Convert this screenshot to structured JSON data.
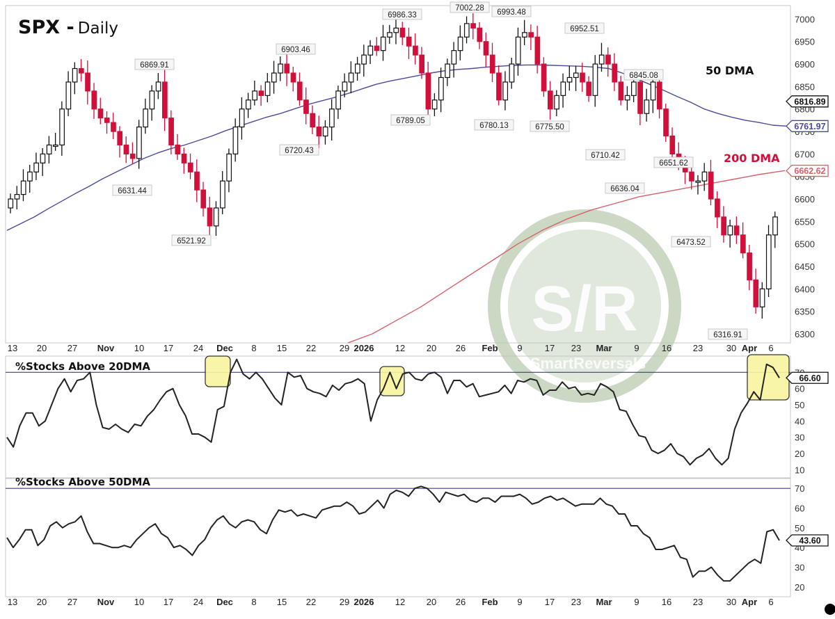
{
  "header": {
    "symbol": "SPX -",
    "timeframe": "Daily"
  },
  "labels": {
    "dma50": "50 DMA",
    "dma200": "200 DMA",
    "panel2_title": "%Stocks Above 20DMA",
    "panel3_title": "%Stocks Above 50DMA",
    "watermark_main": "S/R",
    "watermark_sub": "SmartReversals"
  },
  "colors": {
    "bear": "#d0103a",
    "bull_fill": "#ffffff",
    "bull_stroke": "#111111",
    "dma50": "#4a4a9c",
    "dma200": "#d9606b",
    "threshold": "#3b3b8f",
    "highlight": "#f8f4a0",
    "watermark": "#b9ccb0"
  },
  "chart_data": [
    {
      "type": "candlestick",
      "title": "SPX - Daily",
      "ylabel": "",
      "ylim": [
        6280,
        7030
      ],
      "y_ticks": [
        6300,
        6350,
        6400,
        6450,
        6500,
        6550,
        6600,
        6650,
        6700,
        6750,
        6800,
        6850,
        6900,
        6950,
        7000
      ],
      "x_tick_labels": [
        "13",
        "20",
        "27",
        "Nov",
        "10",
        "17",
        "24",
        "Dec",
        "8",
        "15",
        "22",
        "29",
        "2026",
        "12",
        "20",
        "26",
        "Feb",
        "9",
        "17",
        "23",
        "Mar",
        "9",
        "16",
        "23",
        "30",
        "Apr",
        "6"
      ],
      "last_values": {
        "price": "6816.89",
        "dma50": "6761.97",
        "dma200": "6662.62"
      },
      "annotations": [
        {
          "label": "6869.91",
          "type": "high"
        },
        {
          "label": "6903.46",
          "type": "high"
        },
        {
          "label": "6986.33",
          "type": "high"
        },
        {
          "label": "7002.28",
          "type": "high"
        },
        {
          "label": "6993.48",
          "type": "high"
        },
        {
          "label": "6952.51",
          "type": "high"
        },
        {
          "label": "6845.08",
          "type": "high"
        },
        {
          "label": "6651.62",
          "type": "high"
        },
        {
          "label": "6631.44",
          "type": "low"
        },
        {
          "label": "6521.92",
          "type": "low"
        },
        {
          "label": "6720.43",
          "type": "low"
        },
        {
          "label": "6789.05",
          "type": "low"
        },
        {
          "label": "6780.13",
          "type": "low"
        },
        {
          "label": "6775.50",
          "type": "low"
        },
        {
          "label": "6710.42",
          "type": "low"
        },
        {
          "label": "6636.04",
          "type": "low"
        },
        {
          "label": "6473.52",
          "type": "low"
        },
        {
          "label": "6316.91",
          "type": "low"
        }
      ],
      "series": [
        {
          "name": "50 DMA",
          "values": [
            6530,
            6545,
            6560,
            6578,
            6595,
            6612,
            6628,
            6645,
            6660,
            6675,
            6690,
            6702,
            6712,
            6720,
            6730,
            6740,
            6752,
            6762,
            6772,
            6782,
            6790,
            6800,
            6810,
            6818,
            6826,
            6835,
            6845,
            6855,
            6862,
            6868,
            6874,
            6880,
            6885,
            6888,
            6890,
            6893,
            6895,
            6897,
            6898,
            6898,
            6897,
            6896,
            6895,
            6893,
            6890,
            6880,
            6868,
            6855,
            6842,
            6828,
            6815,
            6800,
            6790,
            6782,
            6775,
            6770,
            6764,
            6762
          ]
        },
        {
          "name": "200 DMA",
          "values": [
            6280,
            6300,
            6330,
            6360,
            6395,
            6430,
            6465,
            6500,
            6530,
            6555,
            6575,
            6590,
            6605,
            6615,
            6625,
            6635,
            6645,
            6655,
            6663
          ]
        }
      ]
    },
    {
      "type": "line",
      "title": "%Stocks Above 20DMA",
      "ylim": [
        5,
        80
      ],
      "y_ticks": [
        10,
        20,
        30,
        40,
        50,
        60,
        70
      ],
      "threshold": 70,
      "last_value": "66.60",
      "highlights": [
        "late Nov peak",
        "early Jan peak",
        "Apr rebound peak"
      ],
      "values": [
        30,
        24,
        37,
        45,
        45,
        37,
        40,
        50,
        60,
        66,
        58,
        65,
        66,
        70,
        50,
        36,
        35,
        38,
        35,
        33,
        38,
        37,
        43,
        47,
        53,
        58,
        60,
        50,
        43,
        32,
        32,
        30,
        27,
        47,
        49,
        70,
        78,
        69,
        66,
        70,
        66,
        60,
        54,
        50,
        70,
        67,
        68,
        60,
        58,
        57,
        55,
        62,
        59,
        63,
        64,
        66,
        63,
        40,
        53,
        60,
        70,
        60,
        69,
        70,
        66,
        65,
        69,
        70,
        67,
        57,
        65,
        65,
        61,
        63,
        55,
        56,
        57,
        58,
        62,
        57,
        65,
        64,
        66,
        65,
        56,
        59,
        59,
        64,
        60,
        61,
        56,
        57,
        56,
        63,
        61,
        58,
        47,
        46,
        38,
        31,
        30,
        22,
        20,
        22,
        26,
        20,
        18,
        13,
        17,
        19,
        23,
        17,
        13,
        17,
        35,
        45,
        51,
        58,
        53,
        75,
        73,
        66.6
      ]
    },
    {
      "type": "line",
      "title": "%Stocks Above 50DMA",
      "ylim": [
        15,
        75
      ],
      "y_ticks": [
        20,
        30,
        40,
        50,
        60,
        70
      ],
      "threshold": 70,
      "last_value": "43.60",
      "values": [
        45,
        40,
        44,
        49,
        49,
        41,
        44,
        51,
        53,
        50,
        52,
        53,
        56,
        48,
        42,
        42,
        41,
        40,
        40,
        41,
        40,
        44,
        47,
        50,
        52,
        47,
        45,
        40,
        41,
        39,
        36,
        41,
        44,
        50,
        54,
        56,
        52,
        50,
        53,
        54,
        53,
        49,
        47,
        54,
        59,
        58,
        59,
        56,
        57,
        56,
        55,
        59,
        60,
        61,
        61,
        63,
        61,
        57,
        58,
        61,
        64,
        60,
        67,
        69,
        68,
        66,
        70,
        71,
        70,
        67,
        63,
        68,
        67,
        66,
        67,
        64,
        63,
        65,
        65,
        63,
        66,
        66,
        66,
        67,
        65,
        62,
        63,
        65,
        66,
        64,
        65,
        63,
        61,
        62,
        62,
        62,
        65,
        62,
        61,
        57,
        57,
        51,
        51,
        47,
        45,
        39,
        39,
        40,
        41,
        35,
        34,
        25,
        28,
        28,
        30,
        26,
        23,
        23,
        26,
        29,
        32,
        34,
        32,
        48,
        49,
        43.6
      ]
    }
  ]
}
